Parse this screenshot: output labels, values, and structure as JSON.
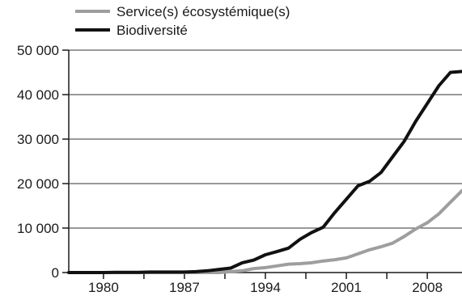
{
  "chart_data": {
    "type": "line",
    "title": "",
    "xlabel": "",
    "ylabel": "",
    "xlim": [
      1977,
      2011
    ],
    "ylim": [
      0,
      50000
    ],
    "grid": "horizontal",
    "legend_position": "top-left",
    "y_ticks": [
      {
        "value": 0,
        "label": "0"
      },
      {
        "value": 10000,
        "label": "10 000"
      },
      {
        "value": 20000,
        "label": "20 000"
      },
      {
        "value": 30000,
        "label": "30 000"
      },
      {
        "value": 40000,
        "label": "40 000"
      },
      {
        "value": 50000,
        "label": "50 000"
      }
    ],
    "x_ticks": [
      {
        "value": 1980,
        "label": "1980"
      },
      {
        "value": 1987,
        "label": "1987"
      },
      {
        "value": 1994,
        "label": "1994"
      },
      {
        "value": 2001,
        "label": "2001"
      },
      {
        "value": 2008,
        "label": "2008"
      }
    ],
    "series": [
      {
        "name": "Service(s) écosystémique(s)",
        "color": "#9e9e9e",
        "x": [
          1977,
          1978,
          1979,
          1980,
          1981,
          1982,
          1983,
          1984,
          1985,
          1986,
          1987,
          1988,
          1989,
          1990,
          1991,
          1992,
          1993,
          1994,
          1995,
          1996,
          1997,
          1998,
          1999,
          2000,
          2001,
          2002,
          2003,
          2004,
          2005,
          2006,
          2007,
          2008,
          2009,
          2010,
          2011
        ],
        "y": [
          0,
          0,
          0,
          0,
          0,
          0,
          0,
          0,
          0,
          0,
          0,
          0,
          0,
          0,
          200,
          400,
          900,
          1100,
          1500,
          1900,
          2000,
          2200,
          2600,
          2900,
          3300,
          4200,
          5100,
          5800,
          6600,
          8100,
          9800,
          11200,
          13200,
          15800,
          18400
        ]
      },
      {
        "name": "Biodiversité",
        "color": "#111111",
        "x": [
          1977,
          1978,
          1979,
          1980,
          1981,
          1982,
          1983,
          1984,
          1985,
          1986,
          1987,
          1988,
          1989,
          1990,
          1991,
          1992,
          1993,
          1994,
          1995,
          1996,
          1997,
          1998,
          1999,
          2000,
          2001,
          2002,
          2003,
          2004,
          2005,
          2006,
          2007,
          2008,
          2009,
          2010,
          2011
        ],
        "y": [
          0,
          0,
          0,
          0,
          50,
          50,
          50,
          100,
          100,
          100,
          100,
          200,
          400,
          700,
          1000,
          2200,
          2800,
          4000,
          4700,
          5500,
          7500,
          9000,
          10200,
          13500,
          16500,
          19500,
          20500,
          22500,
          26000,
          29500,
          34000,
          38000,
          42000,
          45000,
          45200
        ]
      }
    ]
  }
}
